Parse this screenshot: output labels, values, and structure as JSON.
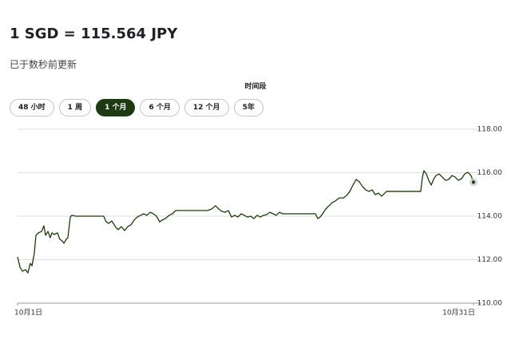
{
  "header": {
    "title": "1 SGD = 115.564 JPY",
    "subtitle": "已于数秒前更新"
  },
  "period": {
    "label": "时间段",
    "options": [
      "48 小时",
      "1 周",
      "1 个月",
      "6 个月",
      "12 个月",
      "5年"
    ],
    "selected": 2
  },
  "chart_data": {
    "type": "line",
    "color": "#1e3a0f",
    "x": [
      1.0,
      1.16,
      1.32,
      1.53,
      1.68,
      1.84,
      1.95,
      2.1,
      2.21,
      2.37,
      2.58,
      2.73,
      2.84,
      3.0,
      3.15,
      3.26,
      3.42,
      3.63,
      3.78,
      3.94,
      4.05,
      4.2,
      4.31,
      4.47,
      4.57,
      4.84,
      6.67,
      6.83,
      6.99,
      7.2,
      7.46,
      7.62,
      7.83,
      8.04,
      8.25,
      8.46,
      8.67,
      8.88,
      9.09,
      9.3,
      9.51,
      9.72,
      9.93,
      10.14,
      10.35,
      10.51,
      10.72,
      10.98,
      11.19,
      11.4,
      11.66,
      13.5,
      13.77,
      14.03,
      14.24,
      14.45,
      14.66,
      14.87,
      15.08,
      15.29,
      15.5,
      15.71,
      15.92,
      16.13,
      16.34,
      16.55,
      16.76,
      16.97,
      17.18,
      17.39,
      17.6,
      17.81,
      18.02,
      18.23,
      18.44,
      18.65,
      20.6,
      20.75,
      20.91,
      21.07,
      21.28,
      21.49,
      21.7,
      21.91,
      22.17,
      22.44,
      22.65,
      22.86,
      23.07,
      23.28,
      23.49,
      23.7,
      23.91,
      24.12,
      24.33,
      24.54,
      24.75,
      24.96,
      25.28,
      25.59,
      27.53,
      27.64,
      27.74,
      27.9,
      28.06,
      28.22,
      28.37,
      28.53,
      28.74,
      28.95,
      29.16,
      29.37,
      29.58,
      29.79,
      30.0,
      30.21,
      30.42,
      30.63,
      30.84,
      31.0
    ],
    "values": [
      112.13,
      111.65,
      111.47,
      111.54,
      111.39,
      111.83,
      111.72,
      112.28,
      113.12,
      113.23,
      113.3,
      113.56,
      113.12,
      113.3,
      113.01,
      113.23,
      113.16,
      113.23,
      112.94,
      112.86,
      112.75,
      112.94,
      113.01,
      113.96,
      114.04,
      114.0,
      114.0,
      113.74,
      113.67,
      113.78,
      113.49,
      113.38,
      113.52,
      113.34,
      113.52,
      113.6,
      113.82,
      113.96,
      114.04,
      114.11,
      114.04,
      114.18,
      114.11,
      114.0,
      113.74,
      113.82,
      113.89,
      114.04,
      114.11,
      114.26,
      114.26,
      114.26,
      114.33,
      114.48,
      114.33,
      114.22,
      114.18,
      114.26,
      113.96,
      114.04,
      113.96,
      114.11,
      114.04,
      113.96,
      114.0,
      113.89,
      114.04,
      113.96,
      114.04,
      114.07,
      114.18,
      114.11,
      114.04,
      114.18,
      114.11,
      114.11,
      114.11,
      113.89,
      113.96,
      114.11,
      114.33,
      114.48,
      114.62,
      114.7,
      114.84,
      114.84,
      114.95,
      115.14,
      115.43,
      115.69,
      115.58,
      115.36,
      115.21,
      115.14,
      115.21,
      114.99,
      115.06,
      114.92,
      115.14,
      115.14,
      115.14,
      115.8,
      116.09,
      115.94,
      115.65,
      115.43,
      115.69,
      115.87,
      115.94,
      115.8,
      115.65,
      115.69,
      115.87,
      115.8,
      115.65,
      115.72,
      115.94,
      116.02,
      115.87,
      115.564
    ],
    "xlim": [
      1,
      31
    ],
    "xticks": [
      {
        "value": 1,
        "label": "10月1日"
      },
      {
        "value": 31,
        "label": "10月31日"
      }
    ],
    "ylim": [
      110,
      118
    ],
    "yticks": [
      {
        "value": 110,
        "label": "110.00"
      },
      {
        "value": 112,
        "label": "112.00"
      },
      {
        "value": 114,
        "label": "114.00"
      },
      {
        "value": 116,
        "label": "116.00"
      },
      {
        "value": 118,
        "label": "118.00"
      }
    ],
    "grid": true
  }
}
